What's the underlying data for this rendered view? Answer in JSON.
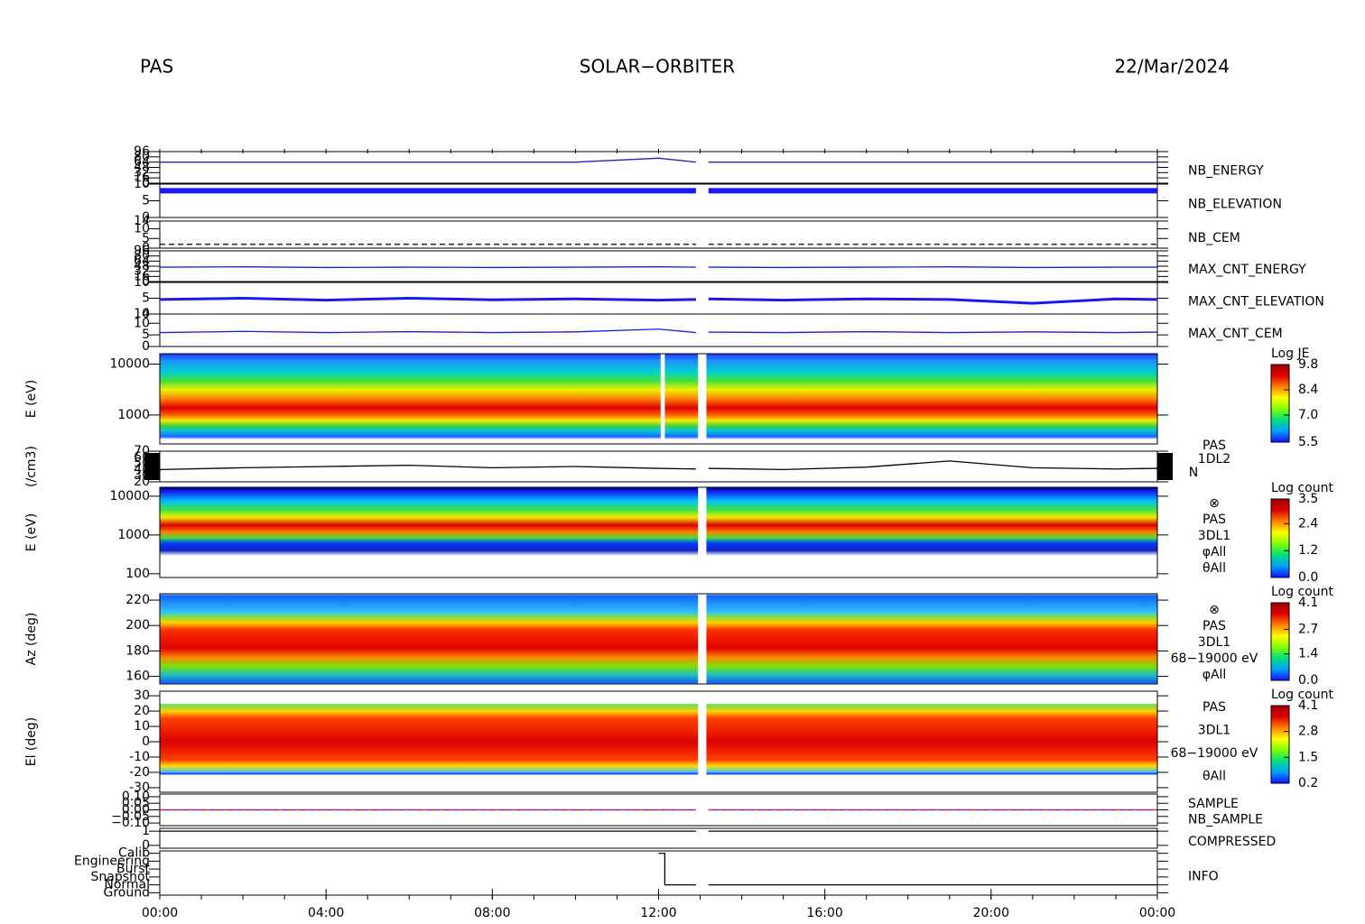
{
  "header": {
    "left": "PAS",
    "center": "SOLAR−ORBITER",
    "right": "22/Mar/2024"
  },
  "x_axis": {
    "xlim": [
      0,
      24
    ],
    "xticks": [
      {
        "value": 0,
        "label": "00:00"
      },
      {
        "value": 4,
        "label": "04:00"
      },
      {
        "value": 8,
        "label": "08:00"
      },
      {
        "value": 12,
        "label": "12:00"
      },
      {
        "value": 16,
        "label": "16:00"
      },
      {
        "value": 20,
        "label": "20:00"
      },
      {
        "value": 24,
        "label": "00:00"
      }
    ]
  },
  "chart_data": [
    {
      "type": "line",
      "x": [
        0,
        2,
        4,
        6,
        8,
        10,
        12,
        12.9,
        13,
        13.2,
        15,
        17,
        19,
        21,
        23,
        24
      ],
      "ylim": [
        0,
        96
      ],
      "yticks": [
        0,
        16,
        32,
        48,
        64,
        80,
        96
      ],
      "series": [
        {
          "name": "NB_ENERGY",
          "color": "#2222bb",
          "values": [
            64,
            64,
            64,
            64,
            64,
            64,
            76,
            64,
            null,
            64,
            64,
            64,
            64,
            64,
            64,
            64
          ]
        }
      ]
    },
    {
      "type": "line",
      "x": [
        0,
        2,
        4,
        6,
        8,
        10,
        12,
        12.9,
        13,
        13.2,
        15,
        17,
        19,
        21,
        23,
        24
      ],
      "ylim": [
        0,
        10
      ],
      "yticks": [
        0,
        5,
        10
      ],
      "series": [
        {
          "name": "NB_ELEVATION",
          "color": "#1a1aee",
          "width": 6,
          "values": [
            8,
            8,
            8,
            8,
            8,
            8,
            8,
            8,
            null,
            8,
            8,
            8,
            8,
            8,
            8,
            8
          ]
        }
      ]
    },
    {
      "type": "line",
      "x": [
        0,
        2,
        4,
        6,
        8,
        10,
        12,
        12.9,
        13,
        13.2,
        15,
        17,
        19,
        21,
        23,
        24
      ],
      "ylim": [
        0,
        14
      ],
      "yticks": [
        0,
        5,
        10,
        14
      ],
      "series": [
        {
          "name": "NB_CEM",
          "color": "#000000",
          "dash": true,
          "values": [
            2,
            2,
            2,
            2,
            2,
            2,
            2,
            2,
            null,
            2,
            2,
            2,
            2,
            2,
            2,
            2
          ]
        }
      ]
    },
    {
      "type": "line",
      "x": [
        0,
        2,
        4,
        6,
        8,
        10,
        12,
        12.9,
        13,
        13.2,
        15,
        17,
        19,
        21,
        23,
        24
      ],
      "ylim": [
        0,
        96
      ],
      "yticks": [
        0,
        16,
        32,
        48,
        64,
        80,
        96
      ],
      "series": [
        {
          "name": "MAX_CNT_ENERGY",
          "color": "#1a1aee",
          "values": [
            45,
            46,
            44,
            45,
            44,
            45,
            46,
            45,
            null,
            45,
            44,
            45,
            46,
            44,
            45,
            45
          ]
        }
      ]
    },
    {
      "type": "line",
      "x": [
        0,
        2,
        4,
        6,
        8,
        10,
        12,
        12.9,
        13,
        13.2,
        15,
        17,
        19,
        21,
        23,
        24
      ],
      "ylim": [
        0,
        10
      ],
      "yticks": [
        0,
        5,
        10
      ],
      "series": [
        {
          "name": "MAX_CNT_ELEVATION",
          "color": "#1a1aee",
          "width": 3,
          "values": [
            4.6,
            5,
            4.4,
            5,
            4.5,
            4.8,
            4.4,
            4.6,
            null,
            4.8,
            4.4,
            4.8,
            4.6,
            3.4,
            4.8,
            4.6
          ]
        }
      ]
    },
    {
      "type": "line",
      "x": [
        0,
        2,
        4,
        6,
        8,
        10,
        12,
        12.9,
        13,
        13.2,
        15,
        17,
        19,
        21,
        23,
        24
      ],
      "ylim": [
        0,
        14
      ],
      "yticks": [
        0,
        5,
        10,
        14
      ],
      "series": [
        {
          "name": "MAX_CNT_CEM",
          "color": "#1a1aee",
          "values": [
            6,
            6.5,
            6,
            6.4,
            6,
            6.3,
            7.5,
            6,
            null,
            6.2,
            6,
            6.4,
            6,
            6.3,
            6,
            6.2
          ]
        }
      ]
    },
    {
      "type": "spectrogram",
      "ylabel": "E (eV)",
      "log": true,
      "ylim": [
        270,
        16000
      ],
      "yticks": [
        1000,
        10000
      ],
      "colorbar": {
        "title": "Log JE",
        "clim": [
          5.5,
          9.8
        ],
        "cticks": [
          5.5,
          {
            "value": 7,
            "label": "7.0"
          },
          8.4,
          9.8
        ]
      },
      "labels": []
    },
    {
      "type": "line",
      "ylabel": "(/cm3)",
      "x": [
        0,
        2,
        4,
        6,
        8,
        10,
        12,
        12.9,
        13,
        13.2,
        15,
        17,
        19,
        21,
        23,
        24
      ],
      "ylim": [
        20,
        70
      ],
      "yticks": [
        20,
        30,
        40,
        50,
        60,
        70
      ],
      "labels": [
        "PAS",
        "1DL2",
        "N"
      ],
      "series": [
        {
          "name": null,
          "color": "#000000",
          "values": [
            40,
            43,
            45,
            47,
            43,
            45,
            42,
            41,
            null,
            42,
            40,
            44,
            54,
            43,
            41,
            42
          ]
        }
      ]
    },
    {
      "type": "spectrogram",
      "ylabel": "E (eV)",
      "log": true,
      "ylim": [
        80,
        17000
      ],
      "yticks": [
        100,
        1000,
        10000
      ],
      "colorbar": {
        "title": "Log count",
        "clim": [
          0,
          3.5
        ],
        "cticks": [
          {
            "value": 0,
            "label": "0.0"
          },
          1.2,
          2.4,
          3.5
        ]
      },
      "labels": [
        "⊗",
        "PAS",
        "3DL1",
        "φAll",
        "θAll"
      ]
    },
    {
      "type": "spectrogram",
      "ylabel": "Az (deg)",
      "ylim": [
        154,
        225
      ],
      "yticks": [
        160,
        180,
        200,
        220
      ],
      "colorbar": {
        "title": "Log count",
        "clim": [
          0,
          4.1
        ],
        "cticks": [
          {
            "value": 0,
            "label": "0.0"
          },
          1.4,
          2.7,
          4.1
        ]
      },
      "labels": [
        "⊗",
        "PAS",
        "3DL1",
        "68−19000 eV",
        "φAll"
      ]
    },
    {
      "type": "spectrogram",
      "ylabel": "El (deg)",
      "ylim": [
        -33,
        33
      ],
      "yticks": [
        -30,
        -20,
        -10,
        0,
        10,
        20,
        30
      ],
      "colorbar": {
        "title": "Log count",
        "clim": [
          0.2,
          4.1
        ],
        "cticks": [
          0.2,
          1.5,
          2.8,
          4.1
        ]
      },
      "labels": [
        "PAS",
        "3DL1",
        "68−19000 eV",
        "θAll"
      ]
    },
    {
      "type": "line",
      "x": [
        0,
        12.9,
        13,
        13.2,
        24
      ],
      "ylim": [
        -0.12,
        0.12
      ],
      "yticks": [
        {
          "value": -0.1,
          "label": "−0.10"
        },
        {
          "value": -0.05,
          "label": "−0.05"
        },
        {
          "value": 0,
          "label": "0.00"
        },
        {
          "value": 0.05,
          "label": "0.05"
        },
        {
          "value": 0.1,
          "label": "0.10"
        }
      ],
      "series": [
        {
          "name": "SAMPLE",
          "color": "#1a1aee",
          "values": [
            0,
            0,
            null,
            0,
            0
          ]
        },
        {
          "name": "NB_SAMPLE",
          "color": "#ee2222",
          "dash": true,
          "values": [
            0,
            0,
            null,
            0,
            0
          ]
        }
      ]
    },
    {
      "type": "line",
      "x": [
        0,
        12.9,
        13,
        13.2,
        24
      ],
      "ylim": [
        -0.2,
        1.2
      ],
      "yticks": [
        0,
        1
      ],
      "series": [
        {
          "name": "COMPRESSED",
          "color": "#000000",
          "values": [
            1,
            1,
            null,
            1,
            1
          ]
        }
      ]
    },
    {
      "type": "line",
      "x": [
        12,
        12.15,
        12.15,
        12.9,
        13,
        13.2,
        24
      ],
      "ylim": [
        -0.3,
        5.3
      ],
      "yticks": [
        {
          "value": 0,
          "label": "Ground"
        },
        {
          "value": 1,
          "label": "Normal"
        },
        {
          "value": 2,
          "label": "Snapshot"
        },
        {
          "value": 3,
          "label": "Burst"
        },
        {
          "value": 4,
          "label": "Engineering"
        },
        {
          "value": 5,
          "label": "Calib"
        }
      ],
      "series": [
        {
          "name": "INFO",
          "color": "#000000",
          "values": [
            5,
            5,
            1,
            1,
            null,
            1,
            1
          ]
        }
      ]
    }
  ]
}
